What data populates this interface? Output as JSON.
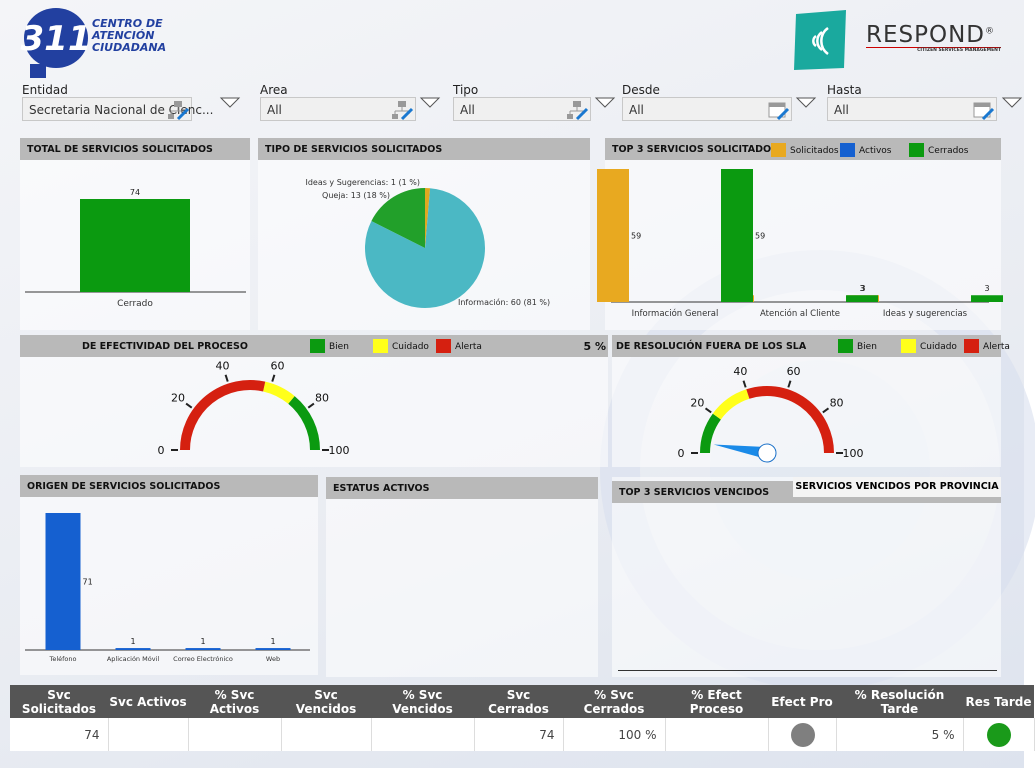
{
  "header": {
    "logo_number": "311",
    "logo_lines": [
      "CENTRO DE",
      "ATENCIÓN",
      "CIUDADANA"
    ],
    "brand": "RESPOND",
    "brand_mark": "®",
    "brand_sub": "CITIZEN SERVICES MANAGEMENT"
  },
  "filters": [
    {
      "label": "Entidad",
      "value": "Secretaria Nacional de Cienc...",
      "icon": "tree"
    },
    {
      "label": "Area",
      "value": "All",
      "icon": "tree"
    },
    {
      "label": "Tipo",
      "value": "All",
      "icon": "tree"
    },
    {
      "label": "Desde",
      "value": "All",
      "icon": "calendar"
    },
    {
      "label": "Hasta",
      "value": "All",
      "icon": "calendar"
    }
  ],
  "chart_data": [
    {
      "type": "bar",
      "title": "TOTAL DE SERVICIOS SOLICITADOS",
      "categories": [
        "Cerrado"
      ],
      "values": [
        74
      ],
      "color": "#0b9a10"
    },
    {
      "type": "pie",
      "title": "TIPO DE SERVICIOS SOLICITADOS",
      "values": [
        1,
        60,
        13
      ],
      "value_labels": [
        "Ideas y Sugerencias: 1 (1 %)",
        "Información: 60 (81 %)",
        "Queja: 13 (18 %)"
      ],
      "colors": [
        "#e0a820",
        "#4bb8c4",
        "#22a02a"
      ]
    },
    {
      "type": "grouped_bar",
      "title": "TOP 3 SERVICIOS SOLICITADOS",
      "categories": [
        "Información General",
        "Atención al Cliente",
        "Ideas y sugerencias"
      ],
      "series": [
        {
          "name": "Solicitados",
          "color": "#e8a920",
          "values": [
            59,
            3,
            3
          ]
        },
        {
          "name": "Activos",
          "color": "#1560d0",
          "values": [
            null,
            null,
            null
          ]
        },
        {
          "name": "Cerrados",
          "color": "#0b9a10",
          "values": [
            59,
            3,
            3
          ]
        }
      ]
    },
    {
      "type": "gauge",
      "title": "DE EFECTIVIDAD DEL PROCESO",
      "lim": [
        0,
        100
      ],
      "ticks": [
        0,
        20,
        40,
        60,
        80,
        100
      ],
      "value": null,
      "bands": [
        {
          "name": "Bien",
          "color": "#0b9a10",
          "from": 72,
          "to": 100
        },
        {
          "name": "Cuidado",
          "color": "#ffff1a",
          "from": 57,
          "to": 72
        },
        {
          "name": "Alerta",
          "color": "#d52010",
          "from": 0,
          "to": 57
        }
      ]
    },
    {
      "type": "gauge",
      "title": "DE RESOLUCIÓN FUERA DE LOS SLA",
      "lim": [
        0,
        100
      ],
      "ticks": [
        0,
        20,
        40,
        60,
        80,
        100
      ],
      "value": 5,
      "value_label": "5 %",
      "bands": [
        {
          "name": "Bien",
          "color": "#0b9a10",
          "from": 0,
          "to": 20
        },
        {
          "name": "Cuidado",
          "color": "#ffff1a",
          "from": 20,
          "to": 40
        },
        {
          "name": "Alerta",
          "color": "#d52010",
          "from": 40,
          "to": 100
        }
      ]
    },
    {
      "type": "bar",
      "title": "ORIGEN DE SERVICIOS SOLICITADOS",
      "categories": [
        "Teléfono",
        "Aplicación Móvil",
        "Correo Electrónico",
        "Web"
      ],
      "values": [
        71,
        1,
        1,
        1
      ],
      "color": "#1560d0"
    }
  ],
  "panels": [
    {
      "title": "ESTATUS ACTIVOS"
    },
    {
      "title": "TOP 3 SERVICIOS VENCIDOS",
      "tab": "SERVICIOS VENCIDOS POR PROVINCIA"
    }
  ],
  "table": {
    "headers": [
      "Svc Solicitados",
      "Svc Activos",
      "% Svc Activos",
      "Svc Vencidos",
      "% Svc Vencidos",
      "Svc Cerrados",
      "% Svc Cerrados",
      "% Efect Proceso",
      "Efect Pro",
      "% Resolución Tarde",
      "Res Tarde"
    ],
    "rows": [
      [
        74,
        null,
        null,
        null,
        null,
        74,
        "100 %",
        null,
        {
          "indicator": "#7f7f7f"
        },
        "5 %",
        {
          "indicator": "#1a9a1a"
        }
      ]
    ]
  }
}
